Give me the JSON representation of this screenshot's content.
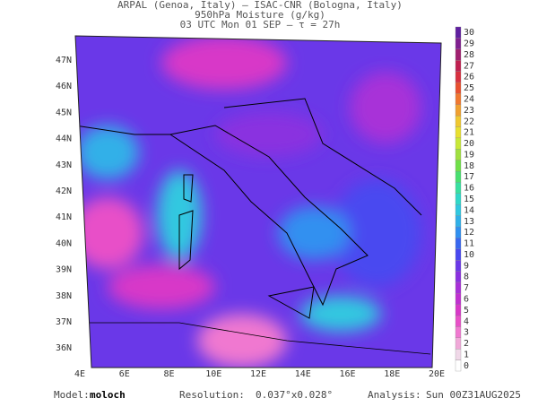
{
  "header": {
    "line1": "ARPAL (Genoa, Italy)  –  ISAC-CNR (Bologna, Italy)",
    "line2": "950hPa Moisture (g/kg)",
    "line3": "03 UTC Mon 01 SEP  –  τ = 27h"
  },
  "map": {
    "lat_ticks": [
      "47N",
      "46N",
      "45N",
      "44N",
      "43N",
      "42N",
      "41N",
      "40N",
      "39N",
      "38N",
      "37N",
      "36N"
    ],
    "lon_ticks": [
      "4E",
      "6E",
      "8E",
      "10E",
      "12E",
      "14E",
      "16E",
      "18E",
      "20E"
    ]
  },
  "colorbar": {
    "levels": [
      0,
      1,
      2,
      3,
      4,
      5,
      6,
      7,
      8,
      9,
      10,
      11,
      12,
      13,
      14,
      15,
      16,
      17,
      18,
      19,
      20,
      21,
      22,
      23,
      24,
      25,
      26,
      27,
      28,
      29,
      30
    ],
    "colors": [
      "#ffffff",
      "#f0d8e8",
      "#f0a8d8",
      "#f078d0",
      "#e850c8",
      "#d838c8",
      "#c030d0",
      "#a830d8",
      "#8a30e0",
      "#6a38e8",
      "#4848f0",
      "#3868f0",
      "#3090f0",
      "#30b0e8",
      "#30c8e0",
      "#30d8c8",
      "#38e0a0",
      "#48e070",
      "#70e048",
      "#a0e040",
      "#c8e838",
      "#e8e030",
      "#f0c830",
      "#f0a030",
      "#f07830",
      "#e85030",
      "#d83040",
      "#c02050",
      "#a02070",
      "#802090",
      "#6020a0"
    ]
  },
  "footer": {
    "model_label": "Model:",
    "model": "moloch",
    "resolution_label": "Resolution:",
    "resolution": "0.037°x0.028°",
    "analysis_label": "Analysis:",
    "analysis": "Sun 00Z31AUG2025"
  }
}
